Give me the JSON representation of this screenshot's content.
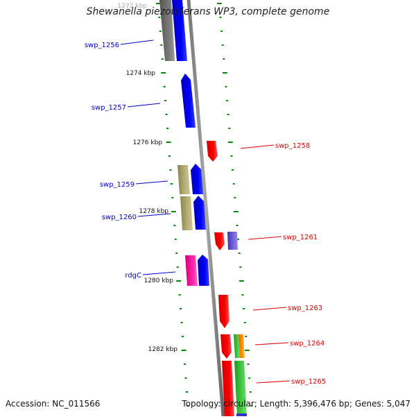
{
  "title": "Shewanella piezotolerans WP3, complete genome",
  "accession_text": "Accession: NC_011566",
  "summary_text": "Topology: circular; Length: 5,396,476 bp; Genes: 5,047",
  "ruler_labels": [
    {
      "text": "1272 kbp"
    },
    {
      "text": "1274 kbp"
    },
    {
      "text": "1276 kbp"
    },
    {
      "text": "1278 kbp"
    },
    {
      "text": "1280 kbp"
    },
    {
      "text": "1282 kbp"
    }
  ],
  "gene_labels": [
    {
      "text": "swp_1256",
      "color": "#0000cc"
    },
    {
      "text": "swp_1257",
      "color": "#0000cc"
    },
    {
      "text": "swp_1258",
      "color": "#dd0000"
    },
    {
      "text": "swp_1259",
      "color": "#0000cc"
    },
    {
      "text": "swp_1260",
      "color": "#0000cc"
    },
    {
      "text": "swp_1261",
      "color": "#dd0000"
    },
    {
      "text": "rdgC",
      "color": "#0000cc"
    },
    {
      "text": "swp_1263",
      "color": "#dd0000"
    },
    {
      "text": "swp_1264",
      "color": "#dd0000"
    },
    {
      "text": "swp_1265",
      "color": "#dd0000"
    }
  ],
  "colors": {
    "forward_strand": "#0000ee",
    "reverse_strand": "#ee0000",
    "tick_marks": "#008800",
    "backbone": "#888888",
    "gene_grey": "#666666",
    "gene_khaki": "#aaa060",
    "gene_magenta": "#ee1199",
    "gene_purple": "#6655cc",
    "gene_green": "#33bb33",
    "gene_orange": "#ff8800"
  }
}
